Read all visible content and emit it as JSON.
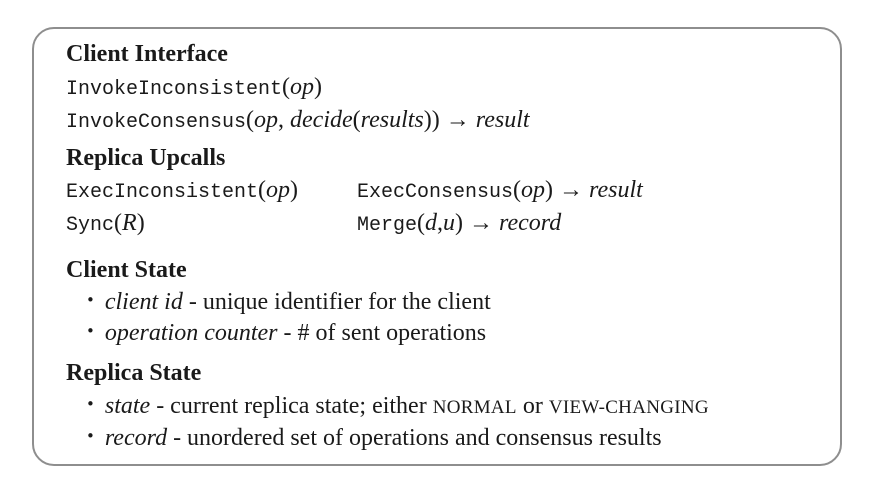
{
  "client_interface": {
    "heading": "Client Interface",
    "invoke_inconsistent": {
      "fn": "InvokeInconsistent",
      "open": "(",
      "arg": "op",
      "close": ")"
    },
    "invoke_consensus": {
      "fn": "InvokeConsensus",
      "open": "(",
      "arg1": "op",
      "comma": ", ",
      "decide": "decide",
      "open2": "(",
      "arg2": "results",
      "close2": "))",
      "arrow": " → ",
      "result": "result"
    }
  },
  "replica_upcalls": {
    "heading": "Replica Upcalls",
    "exec_inconsistent": {
      "fn": "ExecInconsistent",
      "open": "(",
      "arg": "op",
      "close": ")"
    },
    "exec_consensus": {
      "fn": "ExecConsensus",
      "open": "(",
      "arg": "op",
      "close": ")",
      "arrow": " → ",
      "result": "result"
    },
    "sync": {
      "fn": "Sync",
      "open": "(",
      "arg": "R",
      "close": ")"
    },
    "merge": {
      "fn": "Merge",
      "open": "(",
      "arg1": "d",
      "comma": ",",
      "arg2": "u",
      "close": ")",
      "arrow": " → ",
      "result": "record"
    }
  },
  "client_state": {
    "heading": "Client State",
    "bullet": "•",
    "items": [
      {
        "term": "client id",
        "desc": " - unique identifier for the client"
      },
      {
        "term": "operation counter",
        "desc": " - # of sent operations"
      }
    ]
  },
  "replica_state": {
    "heading": "Replica State",
    "bullet": "•",
    "items": [
      {
        "term": "state",
        "desc": " - current replica state; either ",
        "sc1": "NORMAL",
        "or": " or ",
        "sc2": "VIEW-CHANGING"
      },
      {
        "term": "record",
        "desc": " - unordered set of operations and consensus results"
      }
    ]
  }
}
